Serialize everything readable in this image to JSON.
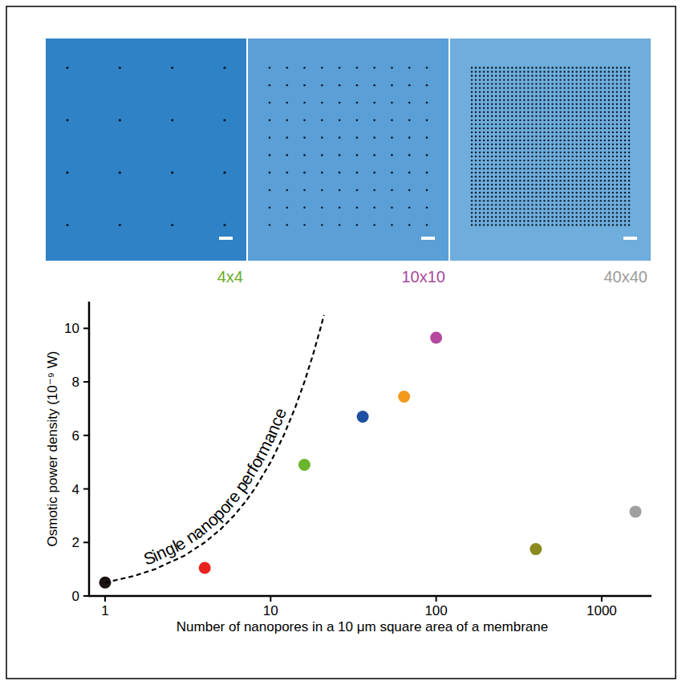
{
  "panels": [
    {
      "label": "4x4",
      "grid": 4,
      "color": "#2f82c6",
      "label_color": "#6aab2a"
    },
    {
      "label": "10x10",
      "grid": 10,
      "color": "#5a9fd6",
      "label_color": "#a8489c"
    },
    {
      "label": "40x40",
      "grid": 40,
      "color": "#6eaddc",
      "label_color": "#9b9b9b"
    }
  ],
  "chart_data": {
    "type": "scatter",
    "x_label": "Number of nanopores in a 10 μm square area of a membrane",
    "y_label": "Osmotic power density (10⁻⁹ W)",
    "log": "x",
    "grid": false,
    "xlim": [
      0.8,
      2000
    ],
    "ylim": [
      0,
      11
    ],
    "xticks": [
      1,
      10,
      100,
      1000
    ],
    "yticks": [
      0,
      2,
      4,
      6,
      8,
      10
    ],
    "series": [
      {
        "type": "scatter",
        "marker": "circle",
        "x": [
          1,
          4,
          16,
          36,
          64,
          100,
          400,
          1600
        ],
        "values": [
          0.5,
          1.05,
          4.9,
          6.7,
          7.45,
          9.65,
          1.75,
          3.15
        ],
        "colors": [
          "#1a1311",
          "#e8231e",
          "#6ab52b",
          "#1f4fa0",
          "#f39a1c",
          "#b5479f",
          "#8a8a1e",
          "#a0a0a0"
        ]
      },
      {
        "type": "line",
        "name": "Single nanopore performance",
        "line_style": "dashed",
        "color": "#000000",
        "x": [
          1,
          1.5,
          2,
          3,
          4,
          5,
          6,
          7,
          8,
          10,
          12,
          14,
          16,
          18,
          20,
          21
        ],
        "values": [
          0.5,
          0.75,
          1,
          1.5,
          2,
          2.5,
          3,
          3.5,
          4,
          5,
          6,
          7,
          8,
          9,
          10,
          10.5
        ]
      }
    ]
  }
}
